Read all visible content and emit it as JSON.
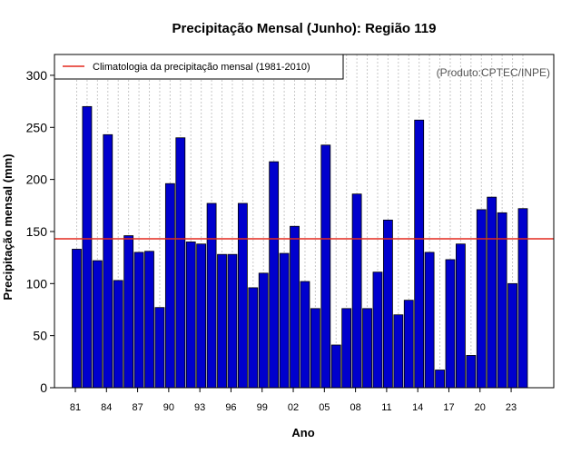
{
  "chart_data": {
    "type": "bar",
    "title": "Precipitação Mensal (Junho): Região 119",
    "xlabel": "Ano",
    "ylabel": "Precipitação mensal (mm)",
    "source_note": "(Produto:CPTEC/INPE)",
    "ylim": [
      0,
      320
    ],
    "yticks": [
      0,
      50,
      100,
      150,
      200,
      250,
      300
    ],
    "xtick_labels": [
      "81",
      "84",
      "87",
      "90",
      "93",
      "96",
      "99",
      "02",
      "05",
      "08",
      "11",
      "14",
      "17",
      "20",
      "23"
    ],
    "xtick_every": 3,
    "categories": [
      "1981",
      "1982",
      "1983",
      "1984",
      "1985",
      "1986",
      "1987",
      "1988",
      "1989",
      "1990",
      "1991",
      "1992",
      "1993",
      "1994",
      "1995",
      "1996",
      "1997",
      "1998",
      "1999",
      "2000",
      "2001",
      "2002",
      "2003",
      "2004",
      "2005",
      "2006",
      "2007",
      "2008",
      "2009",
      "2010",
      "2011",
      "2012",
      "2013",
      "2014",
      "2015",
      "2016",
      "2017",
      "2018",
      "2019",
      "2020",
      "2021",
      "2022",
      "2023",
      "2024"
    ],
    "values": [
      133,
      270,
      122,
      243,
      103,
      146,
      130,
      131,
      77,
      196,
      240,
      140,
      138,
      177,
      128,
      128,
      177,
      96,
      110,
      217,
      129,
      155,
      102,
      76,
      233,
      41,
      76,
      186,
      76,
      111,
      161,
      70,
      84,
      257,
      130,
      17,
      123,
      138,
      31,
      171,
      183,
      168,
      100,
      172
    ],
    "bar_color": "#0000cd",
    "climatology": {
      "label": "Climatologia da precipitação mensal (1981-2010)",
      "value": 143,
      "color": "#e3281e"
    },
    "legend_position": "top-left",
    "grid": "vertical dotted"
  }
}
